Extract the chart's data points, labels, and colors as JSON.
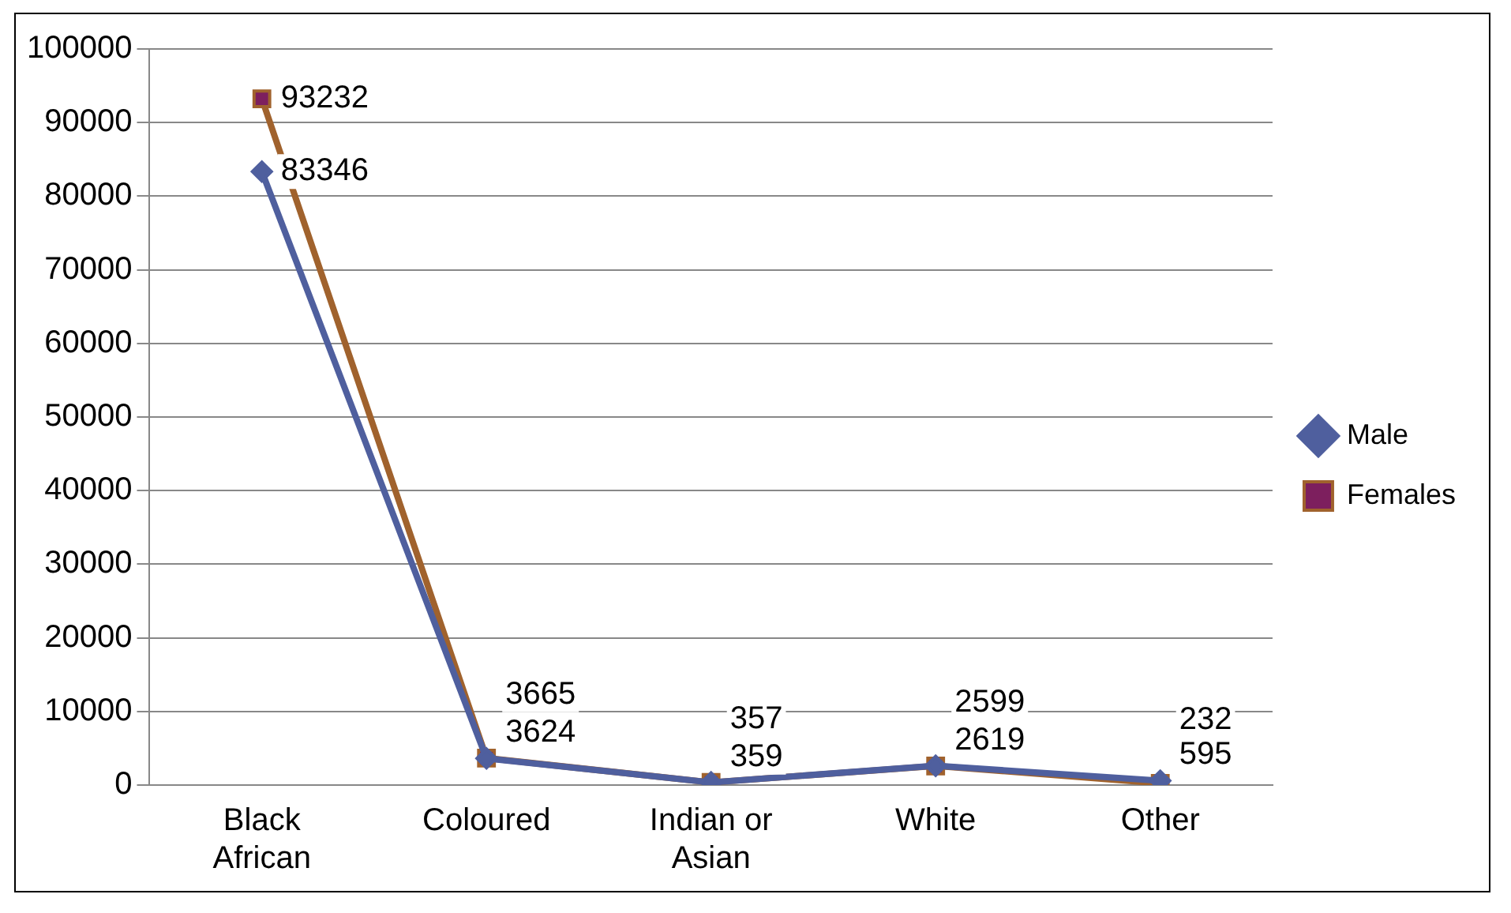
{
  "chart_data": {
    "type": "line",
    "categories": [
      "Black African",
      "Coloured",
      "Indian or Asian",
      "White",
      "Other"
    ],
    "series": [
      {
        "name": "Male",
        "color": "#4f5f9e",
        "values": [
          83346,
          3624,
          359,
          2619,
          595
        ],
        "marker": "diamond"
      },
      {
        "name": "Females",
        "color": "#a0622d",
        "values": [
          93232,
          3665,
          357,
          2599,
          232
        ],
        "marker": "square"
      }
    ],
    "ylim": [
      0,
      100000
    ],
    "yticks": [
      0,
      10000,
      20000,
      30000,
      40000,
      50000,
      60000,
      70000,
      80000,
      90000,
      100000
    ],
    "grid": "y",
    "legend": "right",
    "data_labels": true
  }
}
